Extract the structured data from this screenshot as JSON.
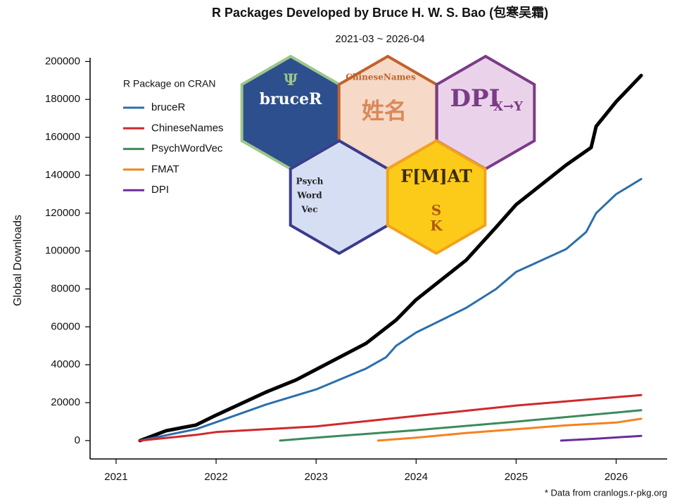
{
  "chart_data": {
    "type": "line",
    "title": "R Packages Developed by Bruce H. W. S. Bao (包寒吴霜)",
    "subtitle": "2021-03 ~ 2026-04",
    "y_label": "Global Downloads",
    "footnote": "* Data from cranlogs.r-pkg.org",
    "legend_title": "R Package on CRAN",
    "xlim": [
      2020.74,
      2026.51
    ],
    "xticks": [
      2021,
      2022,
      2023,
      2024,
      2025,
      2026
    ],
    "ylim": [
      -9700,
      202000
    ],
    "yticks": [
      0,
      20000,
      40000,
      60000,
      80000,
      100000,
      120000,
      140000,
      160000,
      180000,
      200000
    ],
    "series": [
      {
        "color": "#000000",
        "x": [
          2021.24,
          2021.5,
          2021.8,
          2022.0,
          2022.5,
          2022.8,
          2023.0,
          2023.5,
          2023.8,
          2024.0,
          2024.5,
          2024.8,
          2025.0,
          2025.5,
          2025.75,
          2025.8,
          2026.0,
          2026.25
        ],
        "values": [
          0,
          5200,
          8200,
          13400,
          25600,
          32000,
          37500,
          51300,
          63600,
          74300,
          95200,
          112600,
          124500,
          145400,
          154600,
          165800,
          178800,
          192600
        ]
      },
      {
        "name": "bruceR",
        "color": "#2c6fab",
        "x": [
          2021.24,
          2021.8,
          2022.0,
          2022.5,
          2023.0,
          2023.5,
          2023.7,
          2023.8,
          2024.0,
          2024.5,
          2024.8,
          2025.0,
          2025.5,
          2025.7,
          2025.8,
          2026.0,
          2026.25
        ],
        "values": [
          0,
          6000,
          9700,
          19000,
          27000,
          38000,
          44000,
          50000,
          57000,
          70000,
          80000,
          89000,
          101000,
          110000,
          120000,
          130000,
          138000
        ]
      },
      {
        "name": "ChineseNames",
        "color": "#d0282c",
        "x": [
          2021.24,
          2021.8,
          2022.0,
          2023.0,
          2024.0,
          2025.0,
          2026.25
        ],
        "values": [
          0,
          3000,
          4500,
          7500,
          13000,
          18500,
          24000
        ]
      },
      {
        "name": "PsychWordVec",
        "color": "#3d8a5c",
        "x": [
          2022.64,
          2023.0,
          2024.0,
          2025.0,
          2026.25
        ],
        "values": [
          0,
          1500,
          5500,
          10000,
          16000
        ]
      },
      {
        "name": "FMAT",
        "color": "#f58220",
        "x": [
          2023.62,
          2024.0,
          2024.5,
          2025.0,
          2025.5,
          2026.0,
          2026.25
        ],
        "values": [
          0,
          1500,
          4000,
          6000,
          8000,
          9500,
          11500
        ]
      },
      {
        "name": "DPI",
        "color": "#6a2c9a",
        "x": [
          2025.45,
          2025.8,
          2026.25
        ],
        "values": [
          0,
          1000,
          2500
        ]
      }
    ],
    "logos": [
      {
        "fill": "#2d4f8e",
        "border": "#9cc68a",
        "texts": [
          "Ψ",
          "bruceR"
        ]
      },
      {
        "fill": "#f6d9c6",
        "border": "#c0622c",
        "texts": [
          "ChineseNames",
          "姓名"
        ]
      },
      {
        "fill": "#ead3ea",
        "border": "#7b3b88",
        "texts": [
          "DPI",
          "X→Y"
        ]
      },
      {
        "fill": "#d6def4",
        "border": "#3b3b8c",
        "texts": [
          "Psych",
          "Word",
          "Vec"
        ]
      },
      {
        "fill": "#fccb1a",
        "border": "#f2a21c",
        "texts": [
          "F[M]AT",
          "S",
          "K"
        ]
      }
    ]
  }
}
